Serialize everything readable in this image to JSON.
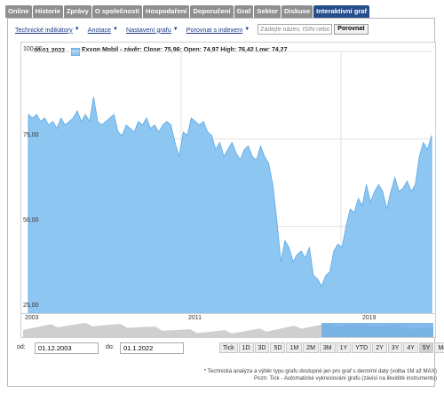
{
  "tabs": [
    {
      "label": "Online",
      "active": false
    },
    {
      "label": "Historie",
      "active": false
    },
    {
      "label": "Zprávy",
      "active": false
    },
    {
      "label": "O společnosti",
      "active": false
    },
    {
      "label": "Hospodaření",
      "active": false
    },
    {
      "label": "Doporučení",
      "active": false
    },
    {
      "label": "Graf",
      "active": false
    },
    {
      "label": "Sektor",
      "active": false
    },
    {
      "label": "Diskuse",
      "active": false
    },
    {
      "label": "Interaktivní graf",
      "active": true
    }
  ],
  "toolbar": {
    "technical": "Technické indikátory",
    "annotations": "Anotace",
    "settings": "Nastavení grafu",
    "compare_index": "Porovnat s indexem",
    "search_placeholder": "Zadejte název, ISIN nebo",
    "compare_button": "Porovnat"
  },
  "chart": {
    "date": "30.01.2022",
    "legend": "Exxon Mobil - závěr: Close: 75,96; Open: 74,97 High: 76,42 Low: 74,27",
    "yticks": [
      "100,00",
      "75,00",
      "50,00",
      "25,00"
    ],
    "navigator_labels": [
      "2003",
      "2011",
      "2019"
    ]
  },
  "range": {
    "from_label": "od:",
    "from_value": "01.12.2003",
    "to_label": "do:",
    "to_value": "01.1.2022",
    "buttons": [
      "Tick",
      "1D",
      "3D",
      "5D",
      "1M",
      "2M",
      "3M",
      "1Y",
      "YTD",
      "2Y",
      "3Y",
      "4Y",
      "5Y",
      "Max"
    ],
    "selected": "5Y"
  },
  "notes": {
    "line1": "* Technická analýza a výběr typu grafu dostupné jen pro graf s denními daty (volba 1M až MAX)",
    "line2": "Pozn: Tick - Automatické vykreslování grafu (závisí na likviditě instrumentu)"
  },
  "colors": {
    "fill": "#8ec6f2",
    "stroke": "#5aa9e6",
    "tab_active": "#264d8c",
    "tab": "#8f8f8f"
  },
  "chart_data": {
    "type": "area",
    "ylim": [
      25,
      100
    ],
    "series": [
      {
        "name": "Exxon Mobil",
        "values": [
          82,
          81,
          82,
          80,
          81,
          79,
          80,
          78,
          81,
          79,
          80,
          81,
          83,
          80,
          82,
          80,
          87,
          80,
          79,
          80,
          81,
          82,
          77,
          76,
          79,
          78,
          77,
          80,
          79,
          81,
          78,
          79,
          77,
          79,
          80,
          79,
          74,
          70,
          77,
          76,
          81,
          80,
          79,
          80,
          77,
          76,
          72,
          74,
          70,
          72,
          74,
          71,
          69,
          72,
          73,
          70,
          69,
          73,
          70,
          68,
          62,
          52,
          40,
          46,
          44,
          40,
          42,
          43,
          41,
          44,
          36,
          35,
          33,
          36,
          37,
          43,
          45,
          44,
          50,
          55,
          54,
          58,
          56,
          62,
          57,
          60,
          62,
          60,
          55,
          60,
          64,
          60,
          61,
          63,
          60,
          62,
          70,
          74,
          72,
          76
        ]
      }
    ]
  }
}
